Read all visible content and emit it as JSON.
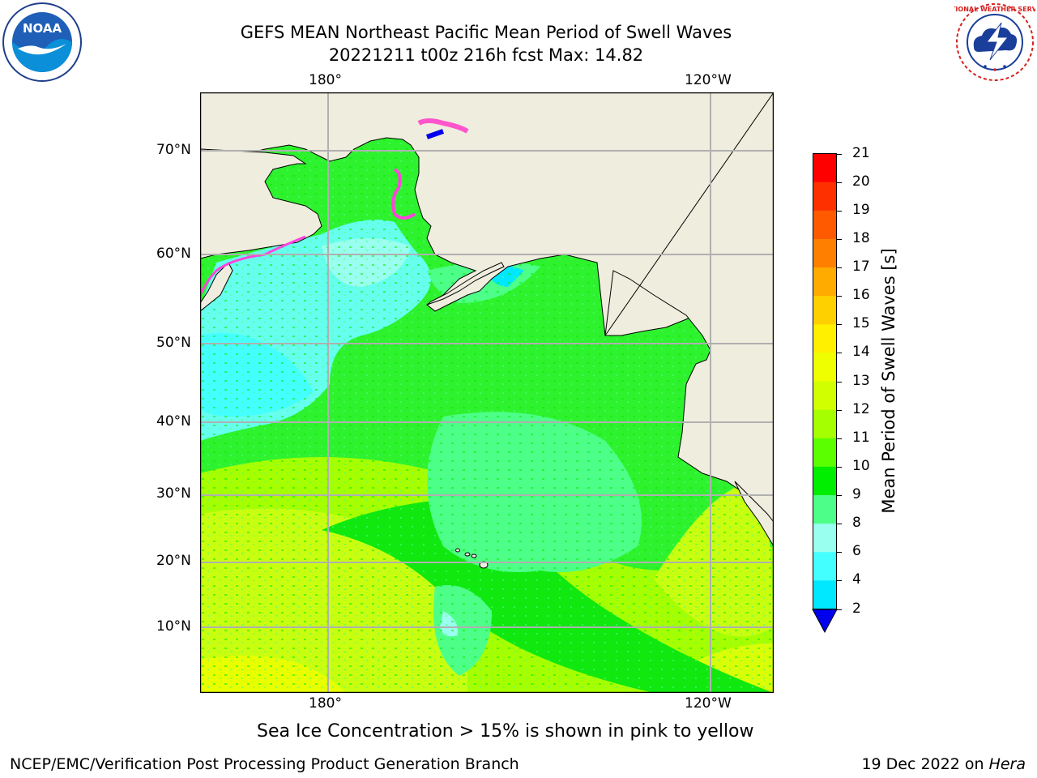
{
  "title": {
    "line1": "GEFS MEAN Northeast Pacific Mean Period of Swell Waves",
    "line2": "20221211 t00z 216h fcst   Max: 14.82"
  },
  "map": {
    "lon_labels": [
      "180°",
      "120°W"
    ],
    "lat_labels": [
      "70°N",
      "60°N",
      "50°N",
      "40°N",
      "30°N",
      "20°N",
      "10°N"
    ],
    "land_color": "#efedde",
    "gridline_color": "#b0b0b0"
  },
  "colorbar": {
    "label": "Mean Period of Swell Waves [s]",
    "ticks": [
      "21",
      "20",
      "19",
      "18",
      "17",
      "16",
      "15",
      "14",
      "13",
      "12",
      "11",
      "10",
      "9",
      "8",
      "6",
      "4",
      "2"
    ],
    "colors": [
      "#ff0000",
      "#ff3000",
      "#ff5a00",
      "#ff8000",
      "#ffab00",
      "#ffd000",
      "#fff000",
      "#f0ff00",
      "#d2ff00",
      "#a6ff00",
      "#5cff00",
      "#00ee00",
      "#4dff88",
      "#99ffee",
      "#44ffff",
      "#00e8ff",
      "#00a5ff",
      "#0060ff",
      "#0000ee"
    ]
  },
  "logos": {
    "noaa_text": "NOAA",
    "nws_text": "NATIONAL WEATHER SERVICE"
  },
  "note": "Sea Ice Concentration > 15% is shown in pink to yellow",
  "footer": {
    "left": "NCEP/EMC/Verification Post Processing Product Generation Branch",
    "right_prefix": "19 Dec 2022 on ",
    "right_machine": "Hera"
  }
}
